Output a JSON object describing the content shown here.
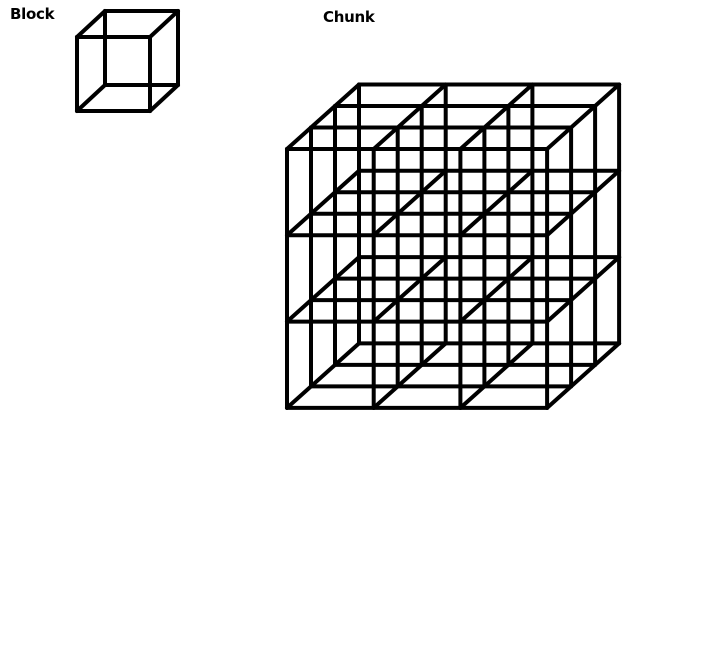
{
  "labels": {
    "block": "Block",
    "chunk": "Chunk"
  },
  "chunk_grid": {
    "blocks_per_side": 3
  },
  "colors": {
    "stroke": "#000000",
    "background": "#ffffff"
  }
}
